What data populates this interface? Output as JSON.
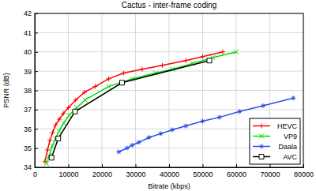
{
  "chart_data": {
    "type": "line",
    "title": "Cactus - inter-frame coding",
    "x_label": "Bitrate (kbps)",
    "y_label": "PSNR (dB)",
    "xlim": [
      0,
      80000
    ],
    "xticks": [
      0,
      10000,
      20000,
      30000,
      40000,
      50000,
      60000,
      70000,
      80000
    ],
    "ylim": [
      34,
      42
    ],
    "yticks": [
      34,
      35,
      36,
      37,
      38,
      39,
      40,
      41,
      42
    ],
    "grid": true,
    "legend": "lower right",
    "series": [
      {
        "name": "HEVC",
        "color": "#ff0000",
        "marker": "plus",
        "x": [
          3000,
          3800,
          4500,
          5300,
          6200,
          7300,
          8500,
          10000,
          12200,
          14800,
          18000,
          22000,
          26500,
          32000,
          38000,
          45000,
          50000,
          56000
        ],
        "values": [
          34.3,
          34.9,
          35.4,
          35.8,
          36.2,
          36.5,
          36.8,
          37.1,
          37.5,
          37.9,
          38.2,
          38.6,
          38.9,
          39.1,
          39.3,
          39.55,
          39.75,
          40.0
        ]
      },
      {
        "name": "VP9",
        "color": "#00dd00",
        "marker": "x",
        "x": [
          3500,
          4300,
          5200,
          6200,
          7300,
          8600,
          10200,
          12500,
          15000,
          22000,
          29000,
          36000,
          41000,
          47000,
          53000,
          60000
        ],
        "values": [
          34.2,
          34.6,
          35.1,
          35.5,
          35.9,
          36.3,
          36.7,
          37.1,
          37.5,
          38.2,
          38.6,
          38.9,
          39.1,
          39.4,
          39.7,
          40.0
        ]
      },
      {
        "name": "Daala",
        "color": "#2a4ee6",
        "marker": "asterisk",
        "x": [
          25000,
          27500,
          29000,
          31000,
          34000,
          37500,
          41000,
          45000,
          50000,
          55000,
          61000,
          68000,
          77000
        ],
        "values": [
          34.8,
          35.0,
          35.15,
          35.3,
          35.55,
          35.75,
          35.95,
          36.15,
          36.4,
          36.6,
          36.9,
          37.2,
          37.6
        ]
      },
      {
        "name": "AVC",
        "color": "#000000",
        "marker": "square",
        "x": [
          5000,
          7000,
          12000,
          26000,
          52000
        ],
        "values": [
          34.5,
          35.5,
          36.9,
          38.4,
          39.55
        ]
      }
    ]
  }
}
